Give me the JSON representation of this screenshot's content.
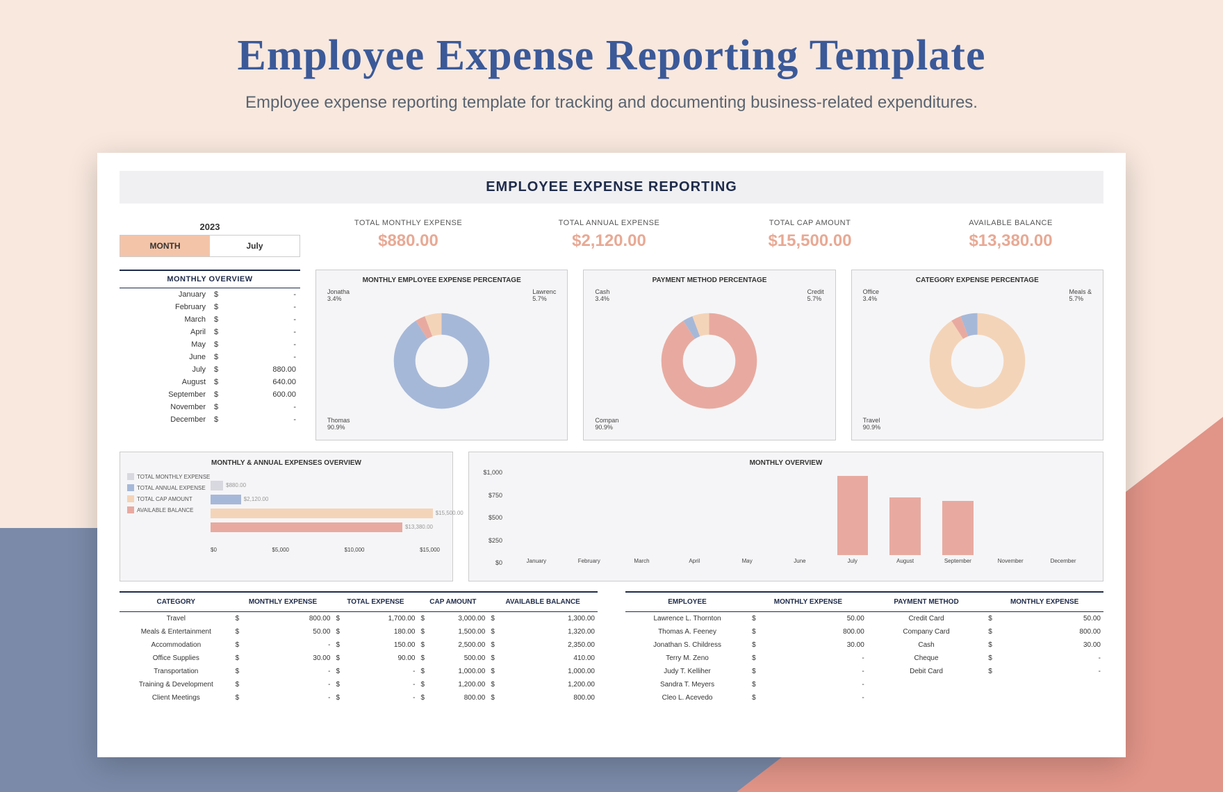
{
  "page": {
    "title": "Employee Expense Reporting Template",
    "subtitle": "Employee expense reporting template for tracking and documenting business-related expenditures.",
    "colors": {
      "heading": "#3b5998",
      "accent": "#e8a994",
      "bg_pink": "#f8e8de",
      "bg_blue": "#7a8aa8",
      "bg_coral": "#e19488"
    }
  },
  "header": {
    "banner": "EMPLOYEE EXPENSE REPORTING"
  },
  "year_selector": {
    "year": "2023",
    "month_label": "MONTH",
    "month_value": "July"
  },
  "stats": [
    {
      "label": "TOTAL MONTHLY EXPENSE",
      "value": "$880.00"
    },
    {
      "label": "TOTAL ANNUAL EXPENSE",
      "value": "$2,120.00"
    },
    {
      "label": "TOTAL CAP AMOUNT",
      "value": "$15,500.00"
    },
    {
      "label": "AVAILABLE BALANCE",
      "value": "$13,380.00"
    }
  ],
  "monthly_overview": {
    "title": "MONTHLY OVERVIEW",
    "rows": [
      {
        "m": "January",
        "v": "-"
      },
      {
        "m": "February",
        "v": "-"
      },
      {
        "m": "March",
        "v": "-"
      },
      {
        "m": "April",
        "v": "-"
      },
      {
        "m": "May",
        "v": "-"
      },
      {
        "m": "June",
        "v": "-"
      },
      {
        "m": "July",
        "v": "880.00"
      },
      {
        "m": "August",
        "v": "640.00"
      },
      {
        "m": "September",
        "v": "600.00"
      },
      {
        "m": "November",
        "v": "-"
      },
      {
        "m": "December",
        "v": "-"
      }
    ]
  },
  "donuts": [
    {
      "title": "MONTHLY EMPLOYEE EXPENSE PERCENTAGE",
      "slices": [
        {
          "name": "Thomas",
          "pct": 90.9,
          "color": "#a6b8d8"
        },
        {
          "name": "Jonatha",
          "pct": 3.4,
          "color": "#e8aaa0"
        },
        {
          "name": "Lawrenc",
          "pct": 5.7,
          "color": "#f4d4b8"
        }
      ]
    },
    {
      "title": "PAYMENT METHOD PERCENTAGE",
      "slices": [
        {
          "name": "Compan",
          "pct": 90.9,
          "color": "#e8aaa0"
        },
        {
          "name": "Cash",
          "pct": 3.4,
          "color": "#a6b8d8"
        },
        {
          "name": "Credit",
          "pct": 5.7,
          "color": "#f4d4b8"
        }
      ]
    },
    {
      "title": "CATEGORY EXPENSE PERCENTAGE",
      "slices": [
        {
          "name": "Travel",
          "pct": 90.9,
          "color": "#f4d4b8"
        },
        {
          "name": "Office",
          "pct": 3.4,
          "color": "#e8aaa0"
        },
        {
          "name": "Meals &",
          "pct": 5.7,
          "color": "#a6b8d8"
        }
      ]
    }
  ],
  "hbar": {
    "title": "MONTHLY & ANNUAL EXPENSES OVERVIEW",
    "max": 16000,
    "ticks": [
      "$0",
      "$5,000",
      "$10,000",
      "$15,000"
    ],
    "items": [
      {
        "label": "TOTAL MONTHLY EXPENSE",
        "value": 880,
        "display": "$880.00",
        "color": "#d8d8e0"
      },
      {
        "label": "TOTAL ANNUAL EXPENSE",
        "value": 2120,
        "display": "$2,120.00",
        "color": "#a6b8d8"
      },
      {
        "label": "TOTAL CAP AMOUNT",
        "value": 15500,
        "display": "$15,500.00",
        "color": "#f4d4b8"
      },
      {
        "label": "AVAILABLE BALANCE",
        "value": 13380,
        "display": "$13,380.00",
        "color": "#e8aaa0"
      }
    ]
  },
  "mo_chart": {
    "title": "MONTHLY OVERVIEW",
    "ymax": 1000,
    "yticks": [
      "$1,000",
      "$750",
      "$500",
      "$250",
      "$0"
    ],
    "bars": [
      {
        "m": "January",
        "v": 0
      },
      {
        "m": "February",
        "v": 0
      },
      {
        "m": "March",
        "v": 0
      },
      {
        "m": "April",
        "v": 0
      },
      {
        "m": "May",
        "v": 0
      },
      {
        "m": "June",
        "v": 0
      },
      {
        "m": "July",
        "v": 880
      },
      {
        "m": "August",
        "v": 640
      },
      {
        "m": "September",
        "v": 600
      },
      {
        "m": "November",
        "v": 0
      },
      {
        "m": "December",
        "v": 0
      }
    ],
    "bar_color": "#e8aaa0"
  },
  "cat_table": {
    "headers": [
      "CATEGORY",
      "MONTHLY EXPENSE",
      "TOTAL EXPENSE",
      "CAP AMOUNT",
      "AVAILABLE BALANCE"
    ],
    "rows": [
      [
        "Travel",
        "800.00",
        "1,700.00",
        "3,000.00",
        "1,300.00"
      ],
      [
        "Meals & Entertainment",
        "50.00",
        "180.00",
        "1,500.00",
        "1,320.00"
      ],
      [
        "Accommodation",
        "-",
        "150.00",
        "2,500.00",
        "2,350.00"
      ],
      [
        "Office Supplies",
        "30.00",
        "90.00",
        "500.00",
        "410.00"
      ],
      [
        "Transportation",
        "-",
        "-",
        "1,000.00",
        "1,000.00"
      ],
      [
        "Training & Development",
        "-",
        "-",
        "1,200.00",
        "1,200.00"
      ],
      [
        "Client Meetings",
        "-",
        "-",
        "800.00",
        "800.00"
      ]
    ]
  },
  "emp_table": {
    "headers": [
      "EMPLOYEE",
      "MONTHLY EXPENSE",
      "PAYMENT METHOD",
      "MONTHLY EXPENSE"
    ],
    "rows": [
      [
        "Lawrence L. Thornton",
        "50.00",
        "Credit Card",
        "50.00"
      ],
      [
        "Thomas A. Feeney",
        "800.00",
        "Company Card",
        "800.00"
      ],
      [
        "Jonathan S. Childress",
        "30.00",
        "Cash",
        "30.00"
      ],
      [
        "Terry M. Zeno",
        "-",
        "Cheque",
        "-"
      ],
      [
        "Judy T. Kelliher",
        "-",
        "Debit Card",
        "-"
      ],
      [
        "Sandra T. Meyers",
        "-",
        "",
        ""
      ],
      [
        "Cleo L. Acevedo",
        "-",
        "",
        ""
      ]
    ]
  }
}
